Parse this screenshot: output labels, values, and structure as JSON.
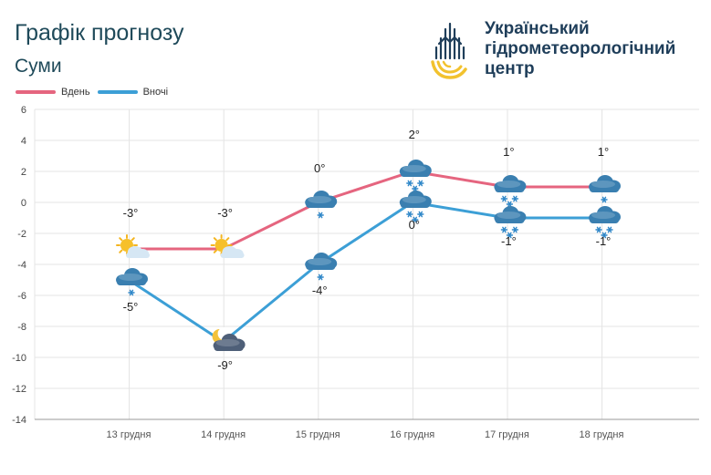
{
  "header": {
    "title": "Графік прогнозу",
    "city": "Суми",
    "org_lines": [
      "Український",
      "гідрометеорологічний",
      "центр"
    ]
  },
  "colors": {
    "day": "#e5657f",
    "night": "#3c9fd6",
    "grid": "#e4e4e4",
    "text": "#1f4a5a"
  },
  "chart_data": {
    "type": "line",
    "title": "",
    "xlabel": "",
    "ylabel": "",
    "ylim": [
      -14,
      6
    ],
    "yticks": [
      6,
      4,
      2,
      0,
      -2,
      -4,
      -6,
      -8,
      -10,
      -12,
      -14
    ],
    "grid": true,
    "legend_position": "top-left",
    "categories": [
      "13 грудня",
      "14 грудня",
      "15 грудня",
      "16 грудня",
      "17 грудня",
      "18 грудня"
    ],
    "series": [
      {
        "name": "Вдень",
        "values": [
          -3,
          -3,
          0,
          2,
          1,
          1
        ],
        "labels": [
          "-3°",
          "-3°",
          "0°",
          "2°",
          "1°",
          "1°"
        ],
        "icons": [
          "sun-behind-cloud-icon",
          "sun-behind-cloud-icon",
          "cloud-snow-icon",
          "cloud-heavy-snow-icon",
          "cloud-heavy-snow-icon",
          "cloud-snow-icon"
        ]
      },
      {
        "name": "Вночі",
        "values": [
          -5,
          -9,
          -4,
          0,
          -1,
          -1
        ],
        "labels": [
          "-5°",
          "-9°",
          "-4°",
          "0°",
          "-1°",
          "-1°"
        ],
        "icons": [
          "cloud-snow-icon",
          "moon-behind-cloud-icon",
          "cloud-snow-icon",
          "cloud-heavy-snow-icon",
          "cloud-heavy-snow-icon",
          "cloud-heavy-snow-icon"
        ]
      }
    ]
  }
}
